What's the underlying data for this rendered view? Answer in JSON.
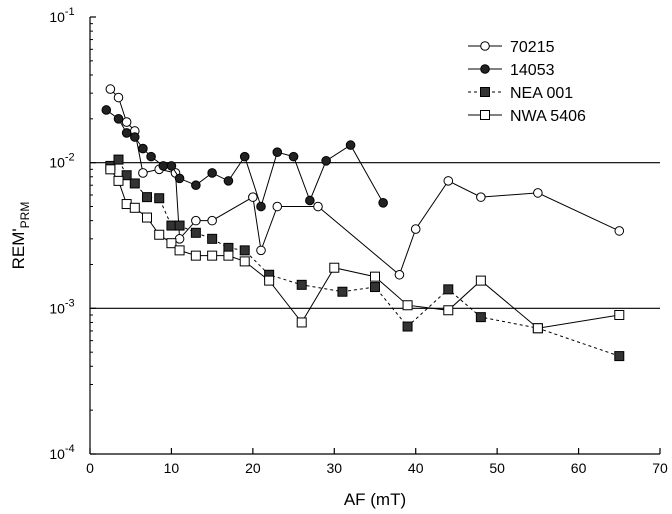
{
  "chart_data": {
    "type": "line",
    "xlabel": "AF (mT)",
    "ylabel": {
      "main": "REM'",
      "subscript": "PRM"
    },
    "xlim": [
      0,
      70
    ],
    "ylim": [
      0.0001,
      0.1
    ],
    "yscale": "log",
    "x_ticks": [
      0,
      10,
      20,
      30,
      40,
      50,
      60,
      70
    ],
    "y_ticks": [
      {
        "value": 0.1,
        "base": "10",
        "exp": "-1"
      },
      {
        "value": 0.01,
        "base": "10",
        "exp": "-2"
      },
      {
        "value": 0.001,
        "base": "10",
        "exp": "-3"
      },
      {
        "value": 0.0001,
        "base": "10",
        "exp": "-4"
      }
    ],
    "reference_lines": [
      0.01,
      0.001
    ],
    "legend_position": "top-right",
    "series": [
      {
        "name": "70215",
        "marker": "circle-open",
        "line": "solid",
        "x": [
          2.5,
          3.5,
          4.5,
          5.5,
          6.5,
          8.5,
          10.5,
          11.0,
          13.0,
          15.0,
          20.0,
          21.0,
          23.0,
          28.0,
          38.0,
          40.0,
          44.0,
          48.0,
          55.0,
          65.0
        ],
        "y": [
          0.032,
          0.028,
          0.019,
          0.0165,
          0.0085,
          0.009,
          0.0085,
          0.003,
          0.004,
          0.004,
          0.0058,
          0.0025,
          0.005,
          0.005,
          0.0017,
          0.0035,
          0.0075,
          0.0058,
          0.0062,
          0.0034
        ]
      },
      {
        "name": "14053",
        "marker": "circle-filled",
        "line": "solid",
        "x": [
          2.0,
          3.5,
          4.5,
          5.5,
          6.5,
          7.5,
          9.0,
          10.0,
          11.0,
          13.0,
          15.0,
          17.0,
          19.0,
          21.0,
          23.0,
          25.0,
          27.0,
          29.0,
          32.0,
          36.0
        ],
        "y": [
          0.023,
          0.02,
          0.016,
          0.015,
          0.0125,
          0.011,
          0.0095,
          0.0095,
          0.0078,
          0.007,
          0.0085,
          0.0075,
          0.011,
          0.005,
          0.0118,
          0.011,
          0.0055,
          0.0103,
          0.0132,
          0.0053
        ]
      },
      {
        "name": "NEA 001",
        "marker": "square-filled",
        "line": "dashed",
        "x": [
          2.5,
          3.5,
          4.5,
          5.5,
          7.0,
          8.5,
          10.0,
          11.0,
          13.0,
          15.0,
          17.0,
          19.0,
          22.0,
          26.0,
          31.0,
          35.0,
          39.0,
          44.0,
          48.0,
          55.0,
          65.0
        ],
        "y": [
          0.0095,
          0.0105,
          0.0082,
          0.0072,
          0.0058,
          0.0057,
          0.0037,
          0.0037,
          0.0033,
          0.003,
          0.0026,
          0.0025,
          0.0017,
          0.00145,
          0.0013,
          0.0014,
          0.00075,
          0.00135,
          0.00087,
          0.00073,
          0.00047
        ]
      },
      {
        "name": "NWA 5406",
        "marker": "square-open",
        "line": "solid",
        "x": [
          2.5,
          3.5,
          4.5,
          5.5,
          7.0,
          8.5,
          10.0,
          11.0,
          13.0,
          15.0,
          17.0,
          19.0,
          22.0,
          26.0,
          30.0,
          35.0,
          39.0,
          44.0,
          48.0,
          55.0,
          65.0
        ],
        "y": [
          0.009,
          0.0075,
          0.0052,
          0.0049,
          0.0042,
          0.0032,
          0.0028,
          0.0025,
          0.0023,
          0.0023,
          0.0023,
          0.0021,
          0.00155,
          0.0008,
          0.0019,
          0.00165,
          0.00105,
          0.00097,
          0.00155,
          0.00073,
          0.0009
        ]
      }
    ]
  }
}
